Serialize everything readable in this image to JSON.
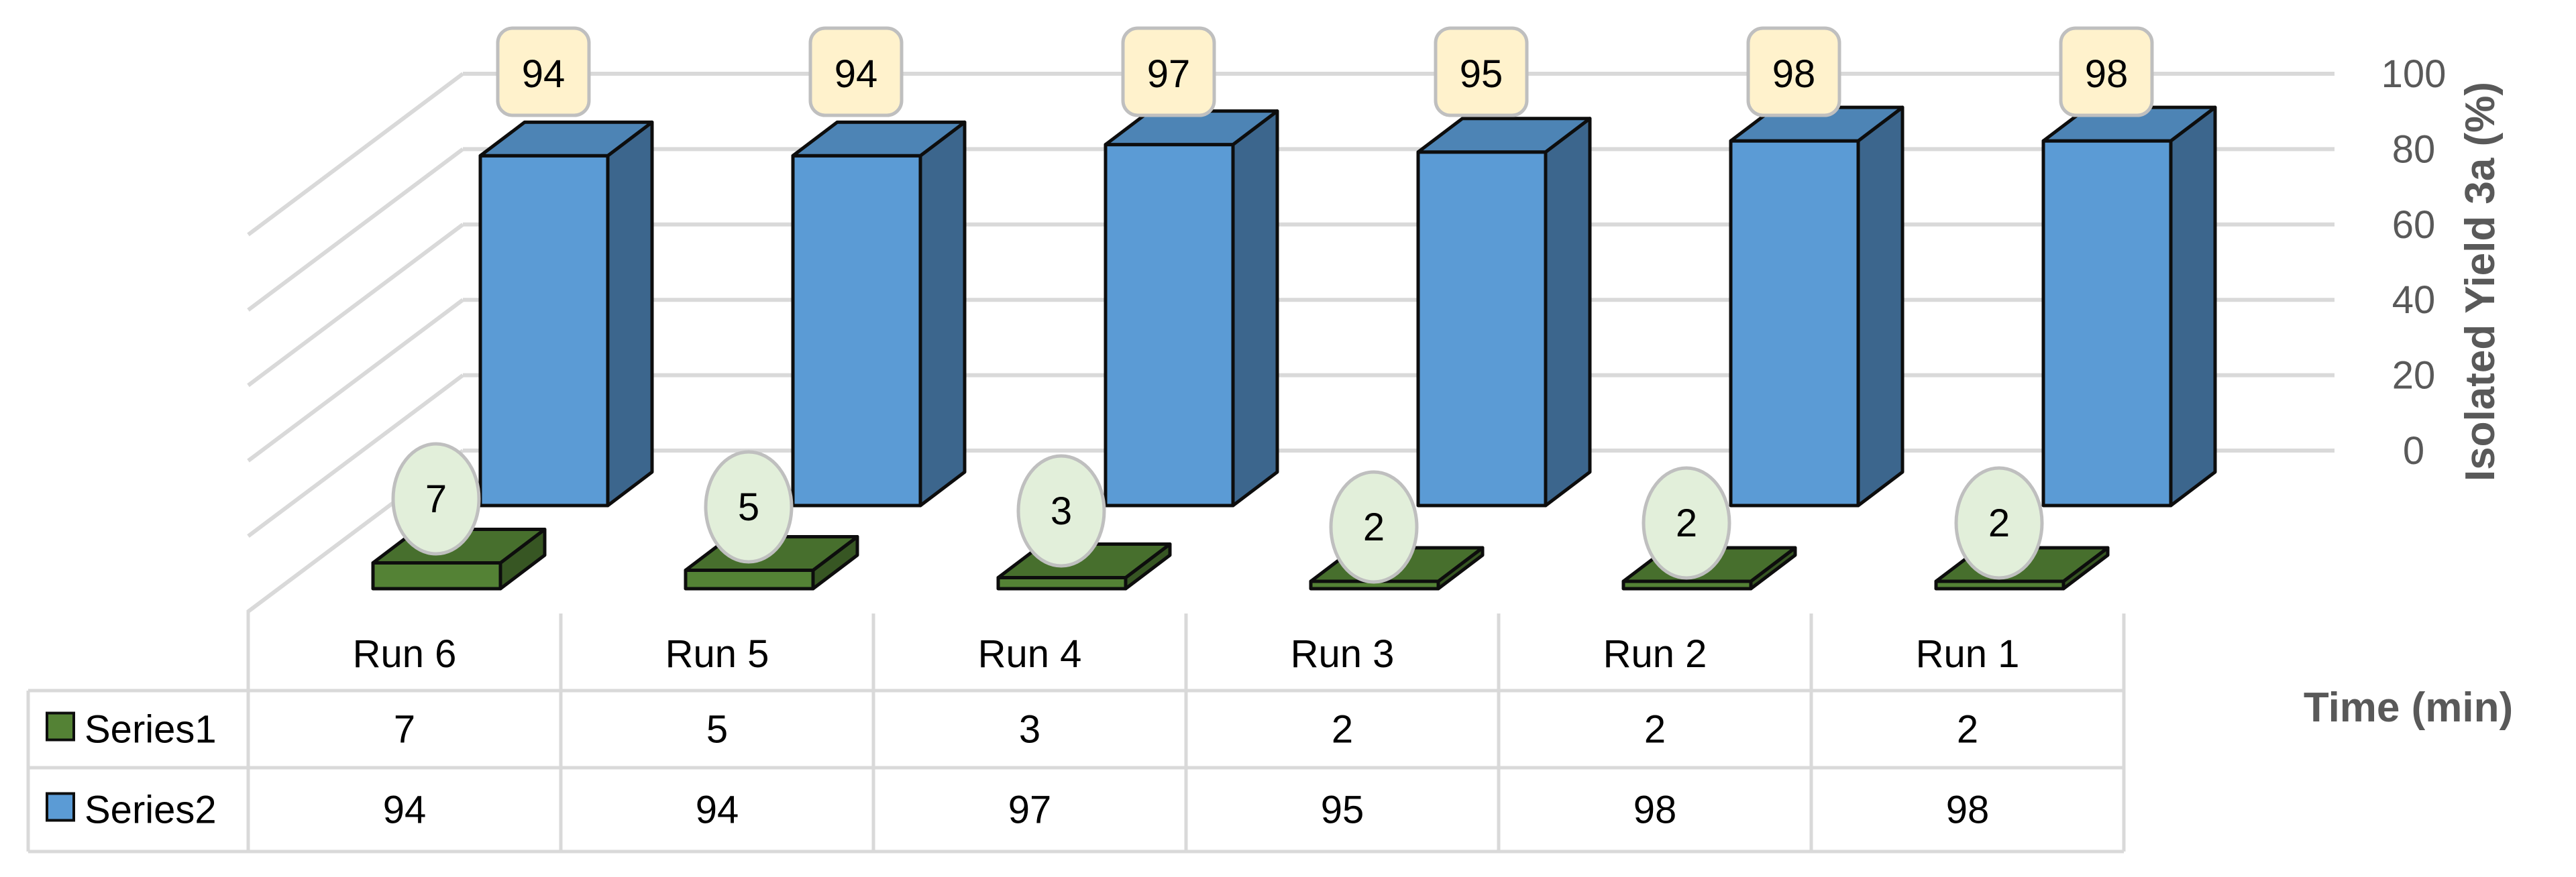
{
  "chart_data": {
    "type": "bar",
    "categories": [
      "Run 6",
      "Run 5",
      "Run 4",
      "Run 3",
      "Run 2",
      "Run 1"
    ],
    "series": [
      {
        "name": "Series1",
        "values": [
          7,
          5,
          3,
          2,
          2,
          2
        ],
        "color": "#548235",
        "label_bg": "#e2efda"
      },
      {
        "name": "Series2",
        "values": [
          94,
          94,
          97,
          95,
          98,
          98
        ],
        "color": "#5b9bd5",
        "label_bg": "#fff2cc"
      }
    ],
    "ylabel": "Isolated Yield 3a (%)",
    "xlabel": "Time (min)",
    "yticks": [
      0,
      20,
      40,
      60,
      80,
      100
    ],
    "ylim": [
      0,
      100
    ],
    "grid": true,
    "data_table": true,
    "three_d": true
  }
}
